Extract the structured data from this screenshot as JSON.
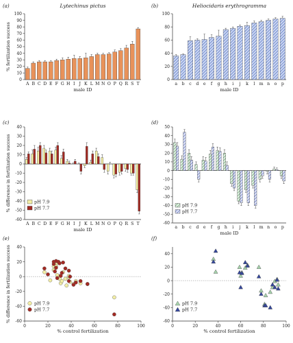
{
  "chart_data": [
    {
      "panel": "(a)",
      "title": "Lytechinus pictus",
      "type": "bar",
      "xlabel": "male ID",
      "ylabel": "% fertilization success",
      "ylim": [
        0,
        100
      ],
      "yticks": [
        0,
        10,
        20,
        30,
        40,
        50,
        60,
        70,
        80,
        90,
        100
      ],
      "categories": [
        "A",
        "B",
        "C",
        "D",
        "E",
        "F",
        "G",
        "H",
        "I",
        "J",
        "K",
        "L",
        "M",
        "N",
        "O",
        "P",
        "Q",
        "R",
        "S",
        "T"
      ],
      "values": [
        17,
        25,
        27,
        27,
        27,
        29,
        30,
        31,
        32,
        32,
        33,
        35,
        38,
        38,
        39,
        42,
        44,
        48,
        54,
        77
      ],
      "errors": [
        2,
        2,
        2,
        2,
        2,
        2,
        3,
        3,
        5,
        3,
        7,
        3,
        2,
        2,
        2,
        3,
        3,
        4,
        4,
        2
      ],
      "color": "#e8925a"
    },
    {
      "panel": "(b)",
      "title": "Heliocidaris erythrogramma",
      "type": "bar",
      "xlabel": "male ID",
      "ylabel": "",
      "ylim": [
        0,
        100
      ],
      "yticks": [
        0,
        20,
        40,
        60,
        80,
        100
      ],
      "categories": [
        "a",
        "b",
        "c",
        "d",
        "e",
        "f",
        "g",
        "h",
        "i",
        "j",
        "k",
        "l",
        "m",
        "n",
        "o",
        "p"
      ],
      "values": [
        36,
        38,
        59,
        60,
        61,
        64,
        66,
        76,
        78,
        81,
        82,
        86,
        88,
        90,
        92,
        93
      ],
      "errors": [
        2,
        1,
        6,
        2,
        8,
        4,
        9,
        2,
        2,
        2,
        5,
        3,
        2,
        2,
        2,
        3
      ],
      "color": "#4f6ec2"
    },
    {
      "panel": "(c)",
      "type": "bar",
      "xlabel": "male ID",
      "ylabel": "% difference in fertilization success",
      "ylim": [
        -60,
        40
      ],
      "yticks": [
        -60,
        -50,
        -40,
        -30,
        -20,
        -10,
        0,
        10,
        20,
        30,
        40
      ],
      "categories": [
        "A",
        "B",
        "C",
        "D",
        "E",
        "F",
        "G",
        "H",
        "I",
        "J",
        "K",
        "L",
        "M",
        "N",
        "O",
        "P",
        "Q",
        "R",
        "S",
        "T"
      ],
      "legend": "bottom-left",
      "series": [
        {
          "name": "pH 7.9",
          "color": "#f3eea5",
          "values": [
            5,
            11,
            14,
            17,
            14,
            15,
            6,
            3,
            0,
            0,
            -2,
            2,
            14,
            7,
            -8,
            -12,
            -9,
            -5,
            -10,
            -28
          ],
          "errors": [
            2,
            4,
            4,
            3,
            3,
            3,
            3,
            2,
            1,
            1,
            2,
            2,
            3,
            3,
            3,
            3,
            3,
            3,
            2,
            3
          ]
        },
        {
          "name": "pH 7.7",
          "color": "#a32a23",
          "values": [
            11,
            16,
            20,
            12,
            11,
            20,
            13,
            1,
            3,
            -8,
            19,
            11,
            8,
            -6,
            0,
            -11,
            -8,
            -6,
            -10,
            -51
          ],
          "errors": [
            2,
            4,
            3,
            3,
            3,
            3,
            3,
            2,
            2,
            3,
            4,
            3,
            3,
            3,
            2,
            3,
            3,
            3,
            2,
            3
          ]
        }
      ]
    },
    {
      "panel": "(d)",
      "type": "bar",
      "xlabel": "male ID",
      "ylabel": "",
      "ylim": [
        -60,
        50
      ],
      "yticks": [
        -60,
        -50,
        -40,
        -30,
        -20,
        -10,
        0,
        10,
        20,
        30,
        40,
        50
      ],
      "categories": [
        "a",
        "b",
        "c",
        "d",
        "e",
        "f",
        "g",
        "h",
        "i",
        "j",
        "k",
        "l",
        "m",
        "n",
        "o",
        "p"
      ],
      "legend": "bottom-left",
      "series": [
        {
          "name": "pH 7.9",
          "color": "#5f9e69",
          "values": [
            32,
            13,
            20,
            7,
            12,
            19,
            23,
            20,
            -15,
            -35,
            -22,
            -17,
            -10,
            -1,
            2,
            -6
          ],
          "errors": [
            4,
            4,
            4,
            3,
            4,
            4,
            4,
            4,
            3,
            3,
            3,
            3,
            3,
            3,
            2,
            3
          ]
        },
        {
          "name": "pH 7.7",
          "color": "#5c6dbd",
          "values": [
            28,
            44,
            12,
            -10,
            11,
            27,
            22,
            6,
            -20,
            -37,
            -37,
            -40,
            -6,
            -10,
            1,
            -12
          ],
          "errors": [
            4,
            3,
            4,
            3,
            4,
            4,
            4,
            4,
            3,
            3,
            3,
            3,
            3,
            3,
            2,
            3
          ]
        }
      ]
    },
    {
      "panel": "(e)",
      "type": "scatter",
      "xlabel": "% control fertilization",
      "ylabel": "% difference in fertilization success",
      "xlim": [
        0,
        100
      ],
      "ylim": [
        -60,
        40
      ],
      "xticks": [
        0,
        20,
        40,
        60,
        80,
        100
      ],
      "yticks": [
        -60,
        -40,
        -20,
        0,
        20,
        40
      ],
      "legend": "bottom-left",
      "series": [
        {
          "name": "pH 7.9",
          "color": "#f3eea5",
          "marker": "circle",
          "points": [
            [
              17,
              6
            ],
            [
              25,
              9
            ],
            [
              25,
              14
            ],
            [
              27,
              17
            ],
            [
              27,
              14
            ],
            [
              29,
              1
            ],
            [
              30,
              -3
            ],
            [
              31,
              -9
            ],
            [
              32,
              -6
            ],
            [
              33,
              6
            ],
            [
              35,
              -3
            ],
            [
              38,
              -1
            ],
            [
              38,
              1
            ],
            [
              39,
              -7
            ],
            [
              42,
              -10
            ],
            [
              44,
              -6
            ],
            [
              48,
              -9
            ],
            [
              54,
              -10
            ],
            [
              77,
              -28
            ],
            [
              22,
              -5
            ],
            [
              28,
              2
            ],
            [
              36,
              -12
            ]
          ]
        },
        {
          "name": "pH 7.7",
          "color": "#a32a23",
          "marker": "circle",
          "points": [
            [
              17,
              11
            ],
            [
              25,
              17
            ],
            [
              25,
              20
            ],
            [
              27,
              12
            ],
            [
              27,
              21
            ],
            [
              29,
              20
            ],
            [
              30,
              18
            ],
            [
              31,
              1
            ],
            [
              32,
              5
            ],
            [
              33,
              19
            ],
            [
              35,
              11
            ],
            [
              38,
              8
            ],
            [
              38,
              -6
            ],
            [
              39,
              0
            ],
            [
              42,
              -11
            ],
            [
              44,
              -8
            ],
            [
              48,
              -6
            ],
            [
              54,
              -10
            ],
            [
              77,
              -51
            ],
            [
              20,
              3
            ],
            [
              28,
              -2
            ],
            [
              26,
              7
            ]
          ]
        }
      ]
    },
    {
      "panel": "(f)",
      "type": "scatter",
      "xlabel": "% control fertilization",
      "ylabel": "",
      "xlim": [
        0,
        100
      ],
      "ylim": [
        -60,
        50
      ],
      "xticks": [
        0,
        20,
        40,
        60,
        80,
        100
      ],
      "yticks": [
        -60,
        -40,
        -20,
        0,
        20,
        40
      ],
      "legend": "bottom-left",
      "series": [
        {
          "name": "pH 7.9",
          "color": "#a6d3ac",
          "marker": "triangle",
          "points": [
            [
              36,
              32
            ],
            [
              38,
              13
            ],
            [
              59,
              20
            ],
            [
              60,
              7
            ],
            [
              61,
              12
            ],
            [
              64,
              19
            ],
            [
              66,
              23
            ],
            [
              76,
              20
            ],
            [
              78,
              -15
            ],
            [
              81,
              -35
            ],
            [
              82,
              -22
            ],
            [
              86,
              -17
            ],
            [
              88,
              -10
            ],
            [
              90,
              -1
            ],
            [
              92,
              2
            ],
            [
              93,
              -6
            ]
          ]
        },
        {
          "name": "pH 7.7",
          "color": "#34479c",
          "marker": "triangle",
          "points": [
            [
              36,
              28
            ],
            [
              38,
              44
            ],
            [
              59,
              12
            ],
            [
              60,
              -10
            ],
            [
              61,
              11
            ],
            [
              64,
              27
            ],
            [
              66,
              22
            ],
            [
              76,
              6
            ],
            [
              78,
              -20
            ],
            [
              81,
              -37
            ],
            [
              82,
              -37
            ],
            [
              86,
              -40
            ],
            [
              88,
              -6
            ],
            [
              90,
              -10
            ],
            [
              92,
              1
            ],
            [
              93,
              -12
            ]
          ]
        }
      ]
    }
  ]
}
